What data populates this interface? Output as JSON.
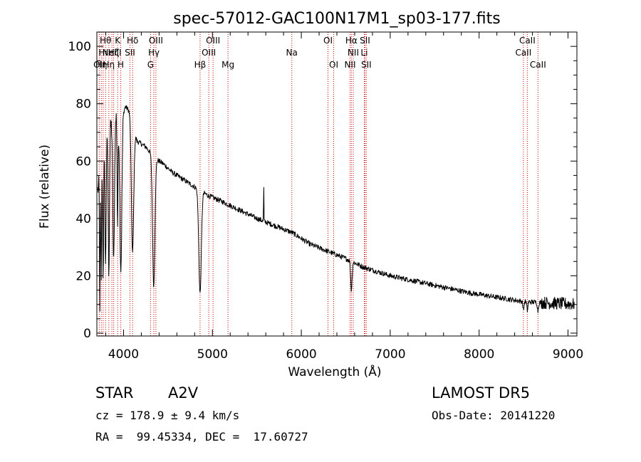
{
  "chart_data": {
    "type": "line",
    "title": "spec-57012-GAC100N17M1_sp03-177.fits",
    "xlabel": "Wavelength (Å)",
    "ylabel": "Flux (relative)",
    "xlim": [
      3700,
      9100
    ],
    "ylim": [
      -1,
      105
    ],
    "xticks": [
      4000,
      5000,
      6000,
      7000,
      8000,
      9000
    ],
    "yticks": [
      0,
      20,
      40,
      60,
      80,
      100
    ],
    "grid": false,
    "colors": {
      "spectrum": "#000000",
      "lines": "#cc0000"
    },
    "continuum": [
      [
        3700,
        48
      ],
      [
        3780,
        62
      ],
      [
        3850,
        72
      ],
      [
        3920,
        76
      ],
      [
        3960,
        74
      ],
      [
        4020,
        79
      ],
      [
        4080,
        77
      ],
      [
        4150,
        67
      ],
      [
        4250,
        65
      ],
      [
        4350,
        61
      ],
      [
        4450,
        59
      ],
      [
        4550,
        56
      ],
      [
        4650,
        54
      ],
      [
        4750,
        52
      ],
      [
        4850,
        50
      ],
      [
        4950,
        48
      ],
      [
        5100,
        46
      ],
      [
        5300,
        43
      ],
      [
        5500,
        40
      ],
      [
        5700,
        37.5
      ],
      [
        5900,
        35
      ],
      [
        6100,
        31
      ],
      [
        6300,
        28.5
      ],
      [
        6500,
        26
      ],
      [
        6700,
        23
      ],
      [
        7000,
        20
      ],
      [
        7300,
        18
      ],
      [
        7600,
        16
      ],
      [
        7900,
        14
      ],
      [
        8200,
        12.5
      ],
      [
        8500,
        11
      ],
      [
        8800,
        10.5
      ],
      [
        9100,
        10
      ]
    ],
    "absorption": [
      {
        "center": 3734,
        "depth": 44,
        "width": 4
      },
      {
        "center": 3750,
        "depth": 40,
        "width": 4
      },
      {
        "center": 3771,
        "depth": 40,
        "width": 5
      },
      {
        "center": 3798,
        "depth": 42,
        "width": 6
      },
      {
        "center": 3835,
        "depth": 48,
        "width": 7
      },
      {
        "center": 3889,
        "depth": 50,
        "width": 9
      },
      {
        "center": 3933,
        "depth": 38,
        "width": 5
      },
      {
        "center": 3970,
        "depth": 52,
        "width": 11
      },
      {
        "center": 4101,
        "depth": 46,
        "width": 13
      },
      {
        "center": 4340,
        "depth": 45,
        "width": 13
      },
      {
        "center": 4861,
        "depth": 36,
        "width": 14
      },
      {
        "center": 6563,
        "depth": 10,
        "width": 8
      },
      {
        "center": 8498,
        "depth": 3,
        "width": 6
      },
      {
        "center": 8542,
        "depth": 3,
        "width": 6
      },
      {
        "center": 8662,
        "depth": 3,
        "width": 6
      }
    ],
    "emission": [
      {
        "center": 5577,
        "height": 13,
        "width": 2
      }
    ],
    "lines": [
      {
        "wave": 3727,
        "label": "OII",
        "row": 3
      },
      {
        "wave": 3750,
        "label": "Hη",
        "row": 3
      },
      {
        "wave": 3771,
        "label": "Hι",
        "row": 1
      },
      {
        "wave": 3798,
        "label": "Hθ",
        "row": 0
      },
      {
        "wave": 3835,
        "label": "Hη",
        "row": 2
      },
      {
        "wave": 3869,
        "label": "NeIII",
        "row": 1
      },
      {
        "wave": 3889,
        "label": "Hζ",
        "row": 1
      },
      {
        "wave": 3934,
        "label": "K",
        "row": 0
      },
      {
        "wave": 3969,
        "label": "H",
        "row": 2
      },
      {
        "wave": 4072,
        "label": "SII",
        "row": 1
      },
      {
        "wave": 4102,
        "label": "Hδ",
        "row": 0
      },
      {
        "wave": 4304,
        "label": "G",
        "row": 2
      },
      {
        "wave": 4341,
        "label": "Hγ",
        "row": 1
      },
      {
        "wave": 4364,
        "label": "OIII",
        "row": 0
      },
      {
        "wave": 4861,
        "label": "Hβ",
        "row": 2
      },
      {
        "wave": 4959,
        "label": "OIII",
        "row": 1
      },
      {
        "wave": 5007,
        "label": "OIII",
        "row": 0
      },
      {
        "wave": 5175,
        "label": "Mg",
        "row": 2
      },
      {
        "wave": 5893,
        "label": "Na",
        "row": 1
      },
      {
        "wave": 6300,
        "label": "OI",
        "row": 0
      },
      {
        "wave": 6364,
        "label": "OI",
        "row": 2
      },
      {
        "wave": 6548,
        "label": "NII",
        "row": 2
      },
      {
        "wave": 6563,
        "label": "Hα",
        "row": 0
      },
      {
        "wave": 6584,
        "label": "NII",
        "row": 1
      },
      {
        "wave": 6708,
        "label": "Li",
        "row": 1
      },
      {
        "wave": 6716,
        "label": "SII",
        "row": 0
      },
      {
        "wave": 6731,
        "label": "SII",
        "row": 2
      },
      {
        "wave": 8498,
        "label": "CaII",
        "row": 1
      },
      {
        "wave": 8542,
        "label": "CaII",
        "row": 0
      },
      {
        "wave": 8662,
        "label": "CaII",
        "row": 2
      }
    ]
  },
  "info": {
    "object_class": "STAR",
    "subclass": "A2V",
    "survey": "LAMOST DR5",
    "cz": "cz = 178.9 ± 9.4 km/s",
    "obs_date": "Obs-Date: 20141220",
    "coords": "RA =  99.45334, DEC =  17.60727"
  }
}
